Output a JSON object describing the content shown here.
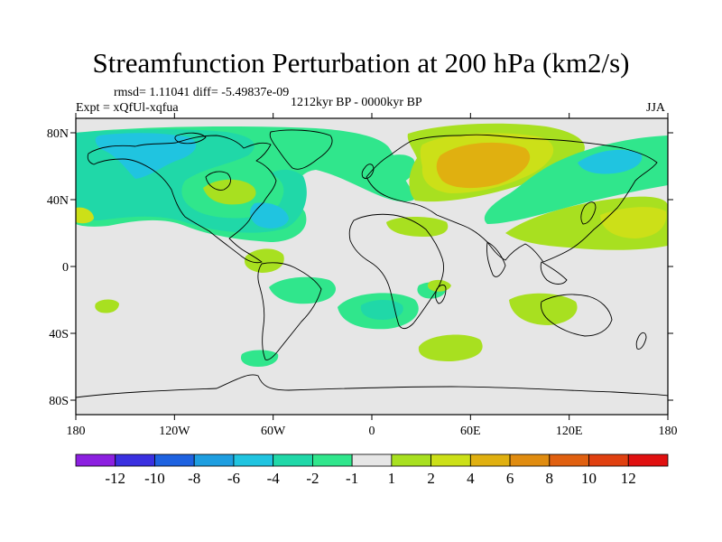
{
  "title": "Streamfunction Perturbation at 200 hPa (km2/s)",
  "stats": "rmsd= 1.11041 diff= -5.49837e-09",
  "experiment": "Expt = xQfUl-xqfua",
  "period": "1212kyr BP - 0000kyr BP",
  "season": "JJA",
  "lat_ticks": [
    "80N",
    "40N",
    "0",
    "40S",
    "80S"
  ],
  "lon_ticks": [
    "180",
    "120W",
    "60W",
    "0",
    "60E",
    "120E",
    "180"
  ],
  "colorbar": {
    "labels": [
      "-12",
      "-10",
      "-8",
      "-6",
      "-4",
      "-2",
      "-1",
      "1",
      "2",
      "4",
      "6",
      "8",
      "10",
      "12"
    ],
    "colors": [
      "#8c20e0",
      "#3a30e0",
      "#1e62e0",
      "#1e9ee0",
      "#20c4e0",
      "#20d8a8",
      "#30e68c",
      "#e6e6e6",
      "#a8e020",
      "#cce018",
      "#e0b010",
      "#e08c10",
      "#e06010",
      "#e04010",
      "#e01010"
    ]
  }
}
